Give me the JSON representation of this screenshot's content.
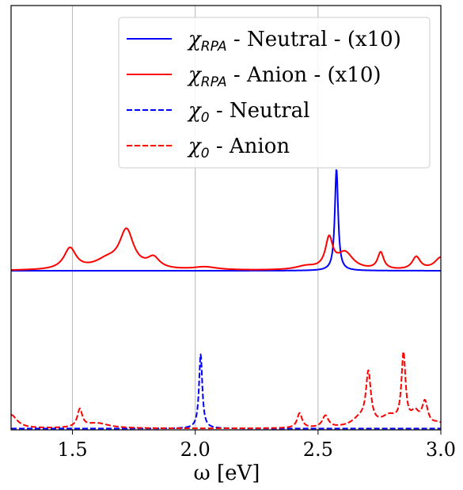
{
  "chart_data": {
    "type": "line",
    "xlabel": "ω [eV]",
    "xlim": [
      1.25,
      3.0
    ],
    "ylim": [
      0,
      1
    ],
    "x_ticks": [
      "1.5",
      "2.0",
      "2.5",
      "3.0"
    ],
    "x_tick_values": [
      1.5,
      2.0,
      2.5,
      3.0
    ],
    "y_ticks": [],
    "grid": "vertical lines at x ticks",
    "legend_position": "upper-right",
    "series": [
      {
        "name": "χRPA - Neutral - (x10)",
        "legend": {
          "symbol": "χ",
          "sub": "RPA",
          "rest": " - Neutral - (x10)"
        },
        "color": "#0000ff",
        "style": "solid",
        "baseline": 0.375,
        "peaks": [
          {
            "x": 2.575,
            "height": 0.24,
            "width": 0.008
          }
        ]
      },
      {
        "name": "χRPA - Anion - (x10)",
        "legend": {
          "symbol": "χ",
          "sub": "RPA",
          "rest": " - Anion - (x10)"
        },
        "color": "#ff0000",
        "style": "solid",
        "baseline": 0.375,
        "peaks": [
          {
            "x": 1.49,
            "height": 0.05,
            "width": 0.03
          },
          {
            "x": 1.64,
            "height": 0.02,
            "width": 0.06
          },
          {
            "x": 1.72,
            "height": 0.09,
            "width": 0.035
          },
          {
            "x": 1.83,
            "height": 0.025,
            "width": 0.03
          },
          {
            "x": 2.04,
            "height": 0.007,
            "width": 0.06
          },
          {
            "x": 2.45,
            "height": 0.008,
            "width": 0.05
          },
          {
            "x": 2.545,
            "height": 0.07,
            "width": 0.018
          },
          {
            "x": 2.61,
            "height": 0.04,
            "width": 0.04
          },
          {
            "x": 2.755,
            "height": 0.04,
            "width": 0.015
          },
          {
            "x": 2.9,
            "height": 0.03,
            "width": 0.02
          },
          {
            "x": 3.0,
            "height": 0.03,
            "width": 0.03
          }
        ]
      },
      {
        "name": "χ0 - Neutral",
        "legend": {
          "symbol": "χ",
          "sub": "0",
          "rest": " - Neutral"
        },
        "color": "#0000ff",
        "style": "dashed",
        "baseline": 0.003,
        "peaks": [
          {
            "x": 2.022,
            "height": 0.175,
            "width": 0.008
          }
        ]
      },
      {
        "name": "χ0 - Anion",
        "legend": {
          "symbol": "χ",
          "sub": "0",
          "rest": " - Anion"
        },
        "color": "#ff0000",
        "style": "dashed",
        "baseline": 0.003,
        "peaks": [
          {
            "x": 1.25,
            "height": 0.032,
            "width": 0.03
          },
          {
            "x": 1.53,
            "height": 0.042,
            "width": 0.012
          },
          {
            "x": 1.6,
            "height": 0.012,
            "width": 0.06
          },
          {
            "x": 2.425,
            "height": 0.035,
            "width": 0.012
          },
          {
            "x": 2.53,
            "height": 0.028,
            "width": 0.015
          },
          {
            "x": 2.67,
            "height": 0.02,
            "width": 0.04
          },
          {
            "x": 2.705,
            "height": 0.12,
            "width": 0.012
          },
          {
            "x": 2.79,
            "height": 0.025,
            "width": 0.04
          },
          {
            "x": 2.848,
            "height": 0.165,
            "width": 0.01
          },
          {
            "x": 2.895,
            "height": 0.03,
            "width": 0.02
          },
          {
            "x": 2.935,
            "height": 0.055,
            "width": 0.014
          },
          {
            "x": 2.99,
            "height": 0.01,
            "width": 0.03
          }
        ]
      }
    ]
  }
}
